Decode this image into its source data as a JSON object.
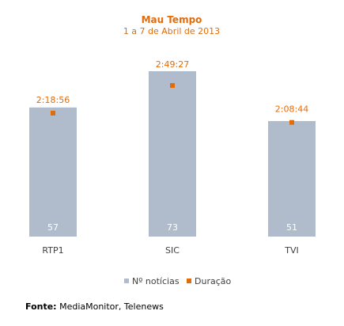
{
  "chart_data": {
    "type": "bar",
    "title": "Mau Tempo",
    "subtitle": "1 a 7 de Abril de 2013",
    "categories": [
      "RTP1",
      "SIC",
      "TVI"
    ],
    "series": [
      {
        "name": "Nº notícias",
        "values": [
          57,
          73,
          51
        ],
        "color": "#b0bccb"
      },
      {
        "name": "Duração",
        "values": [
          "2:18:56",
          "2:49:27",
          "2:08:44"
        ],
        "seconds": [
          8336,
          10167,
          7724
        ],
        "color": "#e36c0a"
      }
    ],
    "ylim": [
      0,
      73
    ],
    "grid": false,
    "legend_position": "bottom"
  },
  "source": {
    "label": "Fonte:",
    "text": " MediaMonitor, Telenews"
  }
}
